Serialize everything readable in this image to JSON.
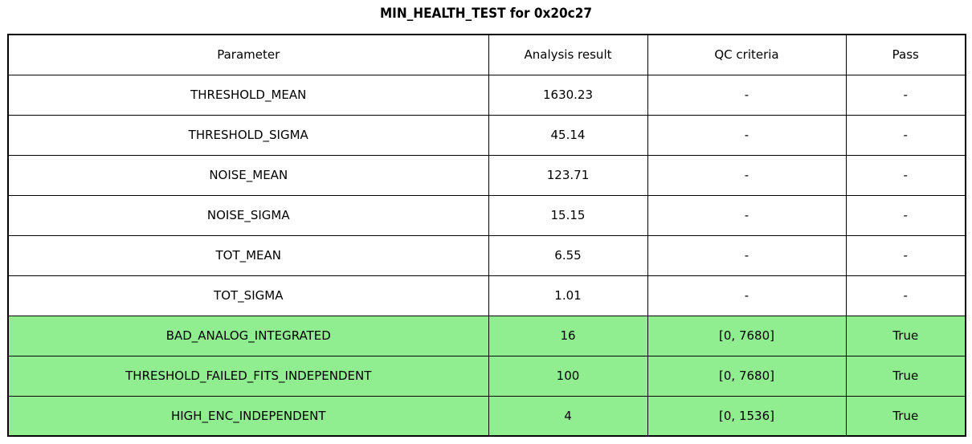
{
  "title": "MIN_HEALTH_TEST for 0x20c27",
  "colors": {
    "highlight_row": "#90EE90",
    "border": "#000000",
    "text": "#000000",
    "background": "#ffffff"
  },
  "table": {
    "headers": [
      "Parameter",
      "Analysis result",
      "QC criteria",
      "Pass"
    ],
    "rows": [
      {
        "parameter": "THRESHOLD_MEAN",
        "result": "1630.23",
        "qc": "-",
        "pass": "-",
        "highlight": false
      },
      {
        "parameter": "THRESHOLD_SIGMA",
        "result": "45.14",
        "qc": "-",
        "pass": "-",
        "highlight": false
      },
      {
        "parameter": "NOISE_MEAN",
        "result": "123.71",
        "qc": "-",
        "pass": "-",
        "highlight": false
      },
      {
        "parameter": "NOISE_SIGMA",
        "result": "15.15",
        "qc": "-",
        "pass": "-",
        "highlight": false
      },
      {
        "parameter": "TOT_MEAN",
        "result": "6.55",
        "qc": "-",
        "pass": "-",
        "highlight": false
      },
      {
        "parameter": "TOT_SIGMA",
        "result": "1.01",
        "qc": "-",
        "pass": "-",
        "highlight": false
      },
      {
        "parameter": "BAD_ANALOG_INTEGRATED",
        "result": "16",
        "qc": "[0, 7680]",
        "pass": "True",
        "highlight": true
      },
      {
        "parameter": "THRESHOLD_FAILED_FITS_INDEPENDENT",
        "result": "100",
        "qc": "[0, 7680]",
        "pass": "True",
        "highlight": true
      },
      {
        "parameter": "HIGH_ENC_INDEPENDENT",
        "result": "4",
        "qc": "[0, 1536]",
        "pass": "True",
        "highlight": true
      }
    ]
  }
}
